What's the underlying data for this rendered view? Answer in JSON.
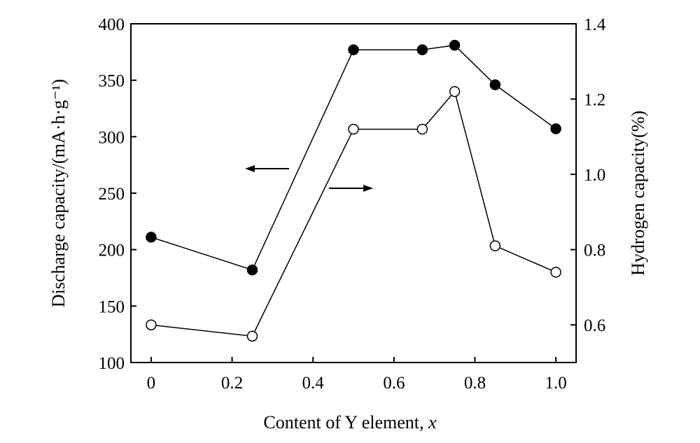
{
  "chart_data": {
    "type": "line",
    "title": "",
    "xlabel_text": "Content of Y element, ",
    "xlabel_var": "x",
    "ylabel_left": "Discharge capacity/(mA·h·g⁻¹)",
    "ylabel_right": "Hydrogen capacity(%)",
    "xlim": [
      -0.05,
      1.05
    ],
    "ylim_left": [
      100,
      400
    ],
    "ylim_right": [
      0.5,
      1.4
    ],
    "x_ticks": [
      "0",
      "0.2",
      "0.4",
      "0.6",
      "0.8",
      "1.0"
    ],
    "y_left_ticks": [
      "100",
      "150",
      "200",
      "250",
      "300",
      "350",
      "400"
    ],
    "y_right_ticks": [
      "0.6",
      "0.8",
      "1.0",
      "1.2",
      "1.4"
    ],
    "grid": false,
    "legend": "none",
    "series": [
      {
        "axis": "left",
        "marker": "filled-circle",
        "x": [
          0,
          0.25,
          0.5,
          0.67,
          0.75,
          0.85,
          1.0
        ],
        "values": [
          211,
          182,
          377,
          377,
          381,
          346,
          307
        ]
      },
      {
        "axis": "right",
        "marker": "open-circle",
        "x": [
          0,
          0.25,
          0.5,
          0.67,
          0.75,
          0.85,
          1.0
        ],
        "values": [
          0.6,
          0.57,
          1.12,
          1.12,
          1.22,
          0.81,
          0.74
        ]
      }
    ],
    "annotations": [
      {
        "type": "arrow",
        "direction": "left",
        "refers_to": "left-axis"
      },
      {
        "type": "arrow",
        "direction": "right",
        "refers_to": "right-axis"
      }
    ]
  }
}
